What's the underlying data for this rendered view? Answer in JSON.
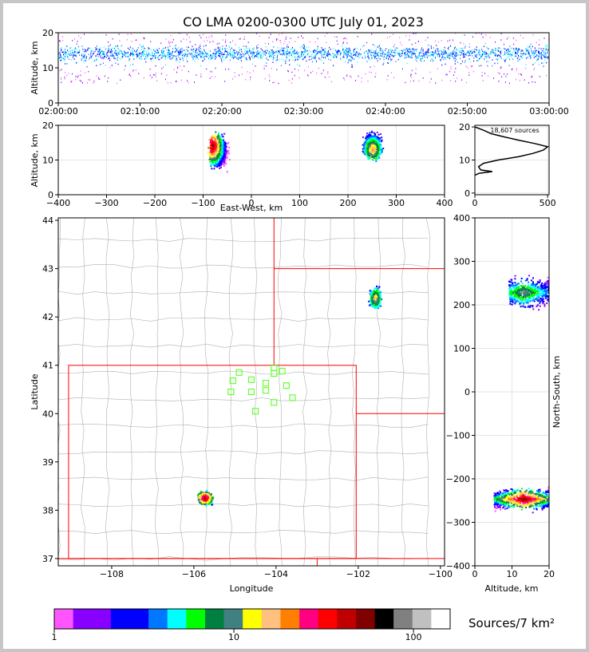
{
  "title": "CO LMA 0200-0300 UTC July 01, 2023",
  "colors": {
    "frame_border": "#c6c6c6",
    "state_border": "#ff0000",
    "county_border": "#b0b0b0",
    "station_marker": "#66ff33",
    "grid": "#e6e6e6",
    "colorbar": [
      "#ff55ff",
      "#8800ff",
      "#8800ff",
      "#0000ff",
      "#0000ff",
      "#0077ff",
      "#00ffff",
      "#00ff00",
      "#008040",
      "#408080",
      "#ffff00",
      "#ffc080",
      "#ff8000",
      "#ff0080",
      "#ff0000",
      "#c00000",
      "#800000",
      "#000000",
      "#808080",
      "#c0c0c0",
      "#ffffff"
    ]
  },
  "panels": {
    "time_height": {
      "ylabel": "Altitude, km",
      "xticks": [
        "02:00:00",
        "02:10:00",
        "02:20:00",
        "02:30:00",
        "02:40:00",
        "02:50:00",
        "03:00:00"
      ],
      "yticks": [
        "0",
        "10",
        "20"
      ]
    },
    "ew_height": {
      "ylabel": "Altitude, km",
      "xlabel": "East-West, km",
      "xticks": [
        "−400",
        "−300",
        "−200",
        "−100",
        "0",
        "100",
        "200",
        "300",
        "400"
      ],
      "yticks": [
        "0",
        "10",
        "20"
      ]
    },
    "altitude_histogram": {
      "annotation": "18,607 sources",
      "xticks": [
        "0",
        "500"
      ],
      "yticks": [
        "0",
        "10",
        "20"
      ]
    },
    "plan_view": {
      "xlabel": "Longitude",
      "ylabel": "Latitude",
      "xticks": [
        "−108",
        "−106",
        "−104",
        "−102",
        "−100"
      ],
      "yticks": [
        "37",
        "38",
        "39",
        "40",
        "41",
        "42",
        "43",
        "44"
      ]
    },
    "ns_height": {
      "xlabel": "Altitude, km",
      "ylabel": "North-South, km",
      "xticks": [
        "0",
        "10",
        "20"
      ],
      "yticks": [
        "−400",
        "−300",
        "−200",
        "−100",
        "0",
        "100",
        "200",
        "300",
        "400"
      ]
    },
    "colorbar": {
      "label": "Sources/7 km²",
      "ticks": [
        "1",
        "10",
        "100"
      ]
    }
  },
  "chart_data": [
    {
      "type": "scatter",
      "title": "CO LMA 0200-0300 UTC July 01, 2023",
      "xlabel": "",
      "ylabel": "Altitude, km",
      "xlim": [
        "02:00:00",
        "03:00:00"
      ],
      "ylim": [
        0,
        20
      ],
      "description_points": "source density vs time and altitude, continuous activity 5-20 km"
    },
    {
      "type": "heatmap",
      "xlabel": "East-West, km",
      "ylabel": "Altitude, km",
      "xlim": [
        -400,
        400
      ],
      "ylim": [
        0,
        20
      ],
      "clusters": [
        {
          "x_range": [
            -100,
            -40
          ],
          "alt_range": [
            5,
            20
          ],
          "peak_x": -82,
          "peak_alt": 14
        },
        {
          "x_range": [
            220,
            280
          ],
          "alt_range": [
            8,
            20
          ],
          "peak_x": 250,
          "peak_alt": 13
        }
      ]
    },
    {
      "type": "line",
      "xlabel": "",
      "ylabel": "",
      "xlim": [
        0,
        510
      ],
      "ylim": [
        0,
        20
      ],
      "annotation": "18,607 sources",
      "profile": [
        {
          "alt": 5.4,
          "count": 0
        },
        {
          "alt": 6.0,
          "count": 30
        },
        {
          "alt": 6.5,
          "count": 120
        },
        {
          "alt": 7.0,
          "count": 40
        },
        {
          "alt": 8.0,
          "count": 25
        },
        {
          "alt": 9.0,
          "count": 60
        },
        {
          "alt": 10.0,
          "count": 160
        },
        {
          "alt": 11.0,
          "count": 300
        },
        {
          "alt": 12.0,
          "count": 400
        },
        {
          "alt": 13.0,
          "count": 470
        },
        {
          "alt": 14.0,
          "count": 500
        },
        {
          "alt": 15.0,
          "count": 410
        },
        {
          "alt": 16.0,
          "count": 300
        },
        {
          "alt": 17.0,
          "count": 200
        },
        {
          "alt": 18.0,
          "count": 110
        },
        {
          "alt": 19.0,
          "count": 60
        },
        {
          "alt": 20.0,
          "count": 0
        }
      ]
    },
    {
      "type": "heatmap",
      "xlabel": "Longitude",
      "ylabel": "Latitude",
      "xlim": [
        -109.3,
        -99.9
      ],
      "ylim": [
        36.85,
        44.05
      ],
      "clusters": [
        {
          "lon": -105.75,
          "lat": 38.27,
          "extent": "0.8 x 0.6 deg"
        },
        {
          "lon": -101.6,
          "lat": 42.4,
          "extent": "0.8 x 1.0 deg"
        }
      ],
      "stations": [
        [
          -104.9,
          40.85
        ],
        [
          -104.05,
          40.95
        ],
        [
          -103.85,
          40.88
        ],
        [
          -104.05,
          40.83
        ],
        [
          -105.05,
          40.68
        ],
        [
          -104.6,
          40.7
        ],
        [
          -104.25,
          40.63
        ],
        [
          -103.75,
          40.58
        ],
        [
          -105.1,
          40.45
        ],
        [
          -104.6,
          40.45
        ],
        [
          -104.25,
          40.48
        ],
        [
          -103.6,
          40.33
        ],
        [
          -104.05,
          40.23
        ],
        [
          -104.5,
          40.05
        ]
      ]
    },
    {
      "type": "heatmap",
      "xlabel": "Altitude, km",
      "ylabel": "North-South, km",
      "xlim": [
        0,
        20
      ],
      "ylim": [
        -400,
        400
      ],
      "clusters": [
        {
          "ns_range": [
            180,
            280
          ],
          "alt_range": [
            9,
            20
          ]
        },
        {
          "ns_range": [
            -280,
            -210
          ],
          "alt_range": [
            5,
            20
          ]
        }
      ]
    }
  ]
}
